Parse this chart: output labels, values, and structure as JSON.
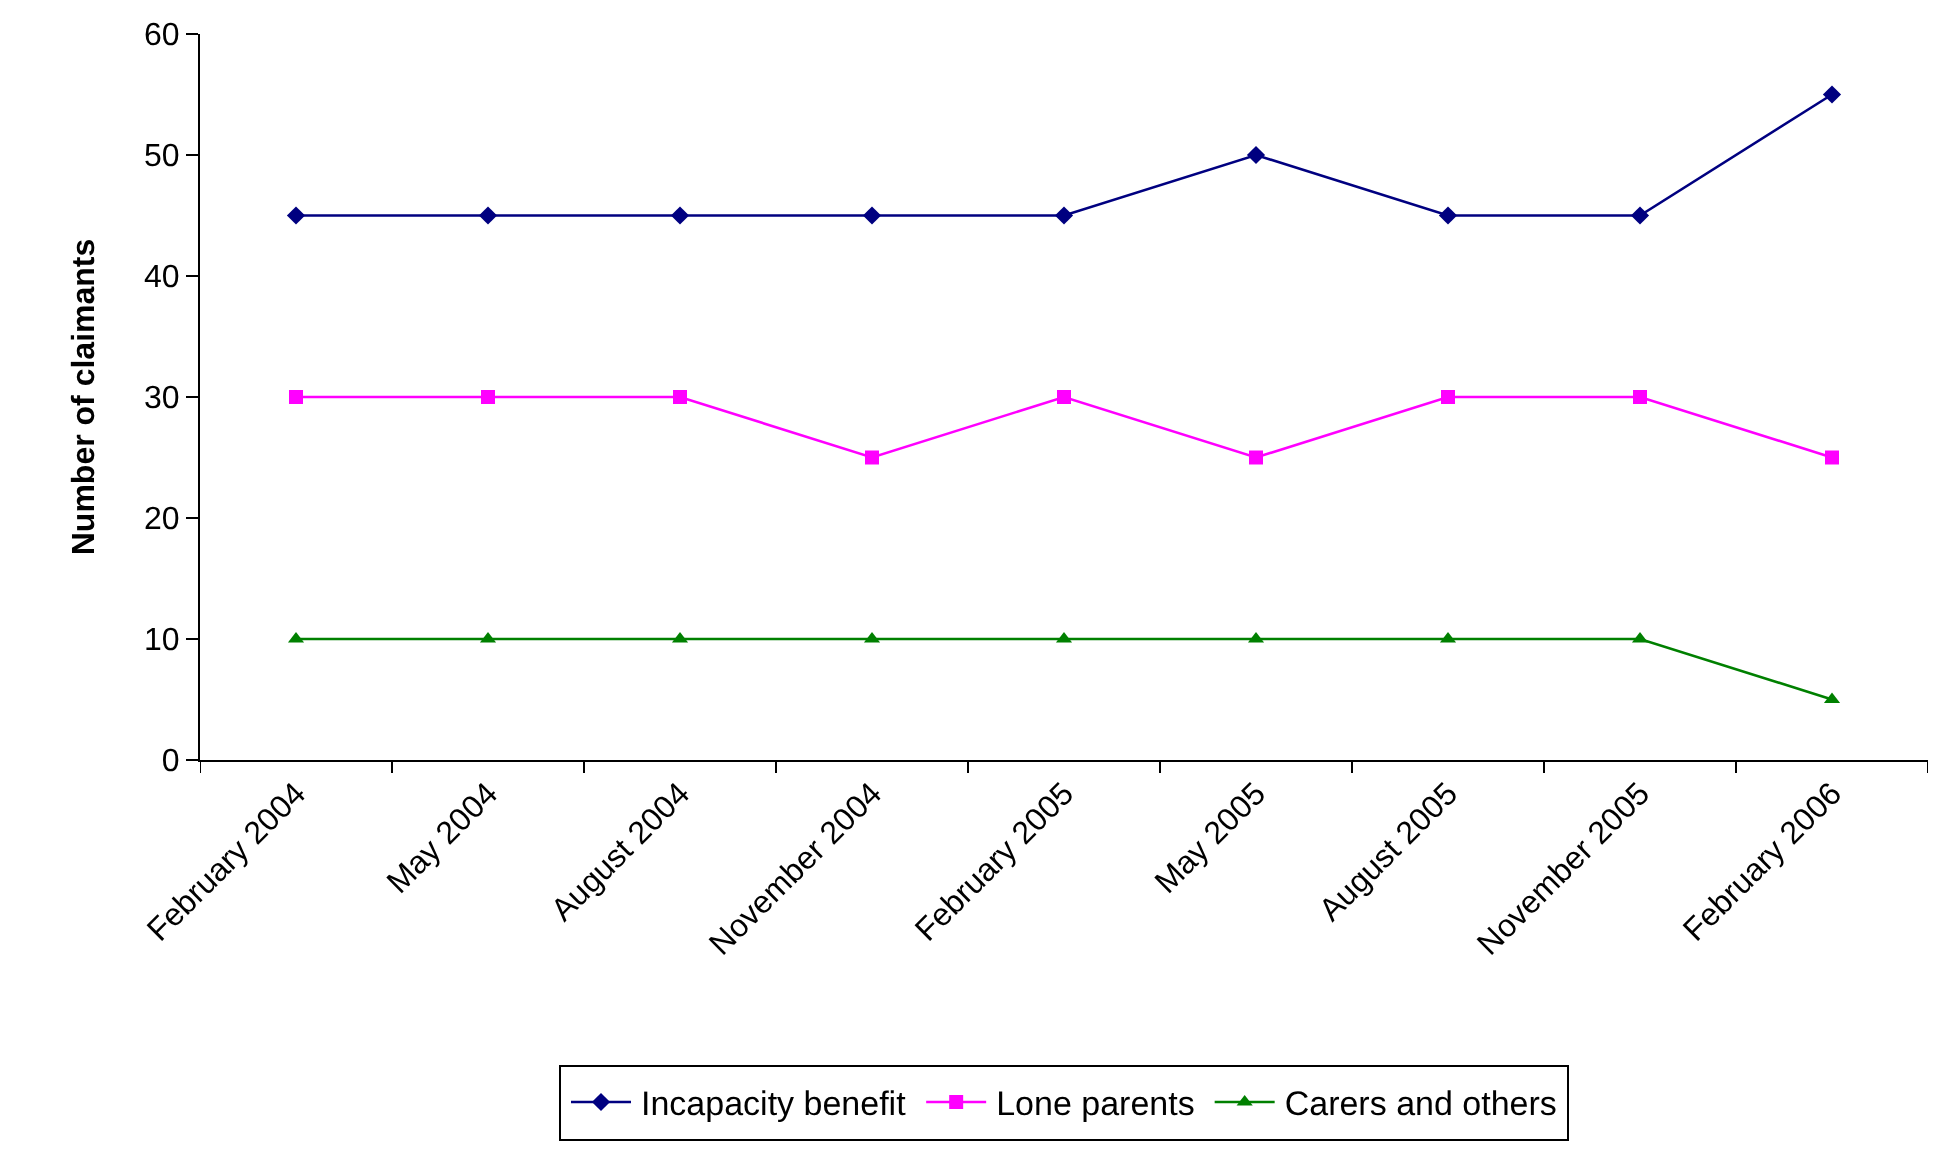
{
  "chart_data": {
    "type": "line",
    "ylabel": "Number of claimants",
    "categories": [
      "February 2004",
      "May 2004",
      "August 2004",
      "November 2004",
      "February 2005",
      "May 2005",
      "August 2005",
      "November 2005",
      "February 2006"
    ],
    "series": [
      {
        "name": "Incapacity benefit",
        "color": "#000080",
        "marker": "diamond",
        "values": [
          45,
          45,
          45,
          45,
          45,
          50,
          45,
          45,
          55
        ]
      },
      {
        "name": "Lone parents",
        "color": "#ff00ff",
        "marker": "square",
        "values": [
          30,
          30,
          30,
          25,
          30,
          25,
          30,
          30,
          25
        ]
      },
      {
        "name": "Carers and others",
        "color": "#008000",
        "marker": "triangle",
        "values": [
          10,
          10,
          10,
          10,
          10,
          10,
          10,
          10,
          5
        ]
      }
    ],
    "ylim": [
      0,
      60
    ],
    "yticks": [
      0,
      10,
      20,
      30,
      40,
      50,
      60
    ],
    "grid": false,
    "legend": "bottom",
    "line_style": "solid"
  }
}
